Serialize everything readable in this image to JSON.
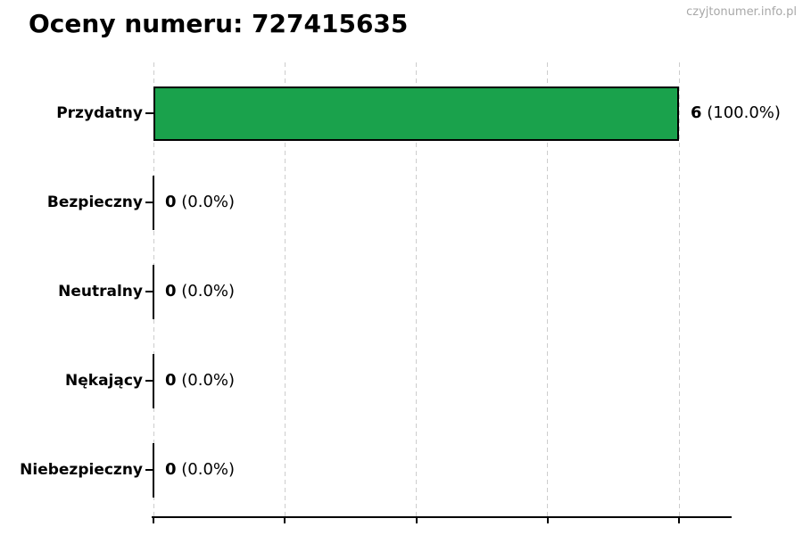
{
  "page": {
    "background": "#ffffff",
    "watermark": "czyjtonumer.info.pl"
  },
  "chart_data": {
    "type": "bar",
    "orientation": "horizontal",
    "title": "Oceny numeru: 727415635",
    "categories": [
      "Przydatny",
      "Bezpieczny",
      "Neutralny",
      "Nękający",
      "Niebezpieczny"
    ],
    "values": [
      6,
      0,
      0,
      0,
      0
    ],
    "percentages": [
      100.0,
      0.0,
      0.0,
      0.0,
      0.0
    ],
    "count_labels": [
      "6",
      "0",
      "0",
      "0",
      "0"
    ],
    "percent_labels": [
      "(100.0%)",
      "(0.0%)",
      "(0.0%)",
      "(0.0%)",
      "(0.0%)"
    ],
    "xlim": [
      0,
      6.6
    ],
    "grid_x_values": [
      0,
      1.5,
      3,
      4.5,
      6
    ],
    "grid_style": "dashed-vertical",
    "grid_color": "#cdcdcd",
    "bar_color": "#1aa24c",
    "bar_edge_color": "#000000",
    "axis_color": "#000000",
    "x_tick_labels": [],
    "legend": "none"
  }
}
